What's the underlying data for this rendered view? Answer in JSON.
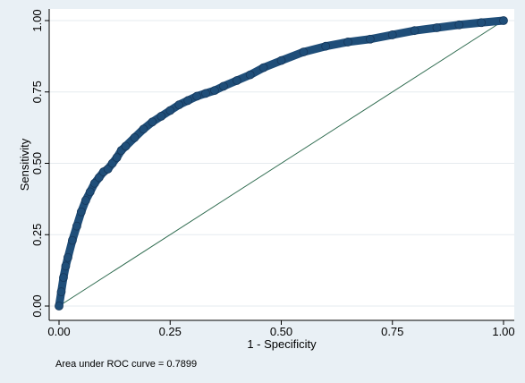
{
  "chart_data": {
    "type": "line",
    "xlabel": "1 - Specificity",
    "ylabel": "Sensitivity",
    "xlim": [
      0,
      1
    ],
    "ylim": [
      0,
      1
    ],
    "x_ticks": [
      "0.00",
      "0.25",
      "0.50",
      "0.75",
      "1.00"
    ],
    "y_ticks": [
      "0.00",
      "0.25",
      "0.50",
      "0.75",
      "1.00"
    ],
    "grid": true,
    "series": [
      {
        "name": "",
        "color": "#1f4e79",
        "x": [
          0,
          0.005,
          0.01,
          0.015,
          0.02,
          0.03,
          0.04,
          0.05,
          0.06,
          0.07,
          0.08,
          0.09,
          0.1,
          0.11,
          0.12,
          0.13,
          0.14,
          0.15,
          0.17,
          0.19,
          0.21,
          0.23,
          0.25,
          0.27,
          0.29,
          0.31,
          0.33,
          0.35,
          0.37,
          0.4,
          0.43,
          0.46,
          0.5,
          0.55,
          0.6,
          0.65,
          0.7,
          0.75,
          0.8,
          0.85,
          0.9,
          0.95,
          1.0
        ],
        "y": [
          0,
          0.05,
          0.1,
          0.14,
          0.17,
          0.23,
          0.28,
          0.33,
          0.37,
          0.4,
          0.43,
          0.45,
          0.47,
          0.48,
          0.5,
          0.52,
          0.545,
          0.56,
          0.59,
          0.62,
          0.645,
          0.665,
          0.685,
          0.705,
          0.72,
          0.735,
          0.745,
          0.755,
          0.77,
          0.79,
          0.81,
          0.835,
          0.86,
          0.89,
          0.91,
          0.925,
          0.935,
          0.95,
          0.965,
          0.975,
          0.985,
          0.993,
          1.0
        ]
      },
      {
        "name": "",
        "color": "#2e6b4f",
        "x": [
          0,
          1
        ],
        "y": [
          0,
          1
        ]
      }
    ],
    "annotations": [
      "Area under ROC curve = 0.7899"
    ]
  }
}
